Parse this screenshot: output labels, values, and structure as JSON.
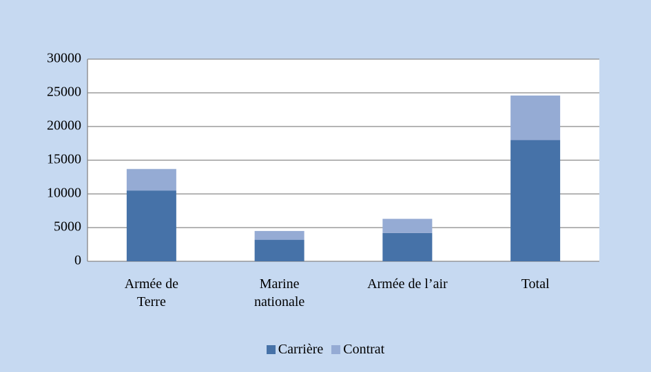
{
  "chart_data": {
    "type": "stacked_bar",
    "categories": [
      "Armée de\nTerre",
      "Marine\nnationale",
      "Armée de l’air",
      "Total"
    ],
    "series": [
      {
        "name": "Carrière",
        "color": "#4672a8",
        "values": [
          10500,
          3200,
          4200,
          18000
        ]
      },
      {
        "name": "Contrat",
        "color": "#95abd4",
        "values": [
          3200,
          1300,
          2100,
          6600
        ]
      }
    ],
    "ylim": [
      0,
      30000
    ],
    "yticks": [
      0,
      5000,
      10000,
      15000,
      20000,
      25000,
      30000
    ],
    "grid": true,
    "legend": "bottom"
  }
}
